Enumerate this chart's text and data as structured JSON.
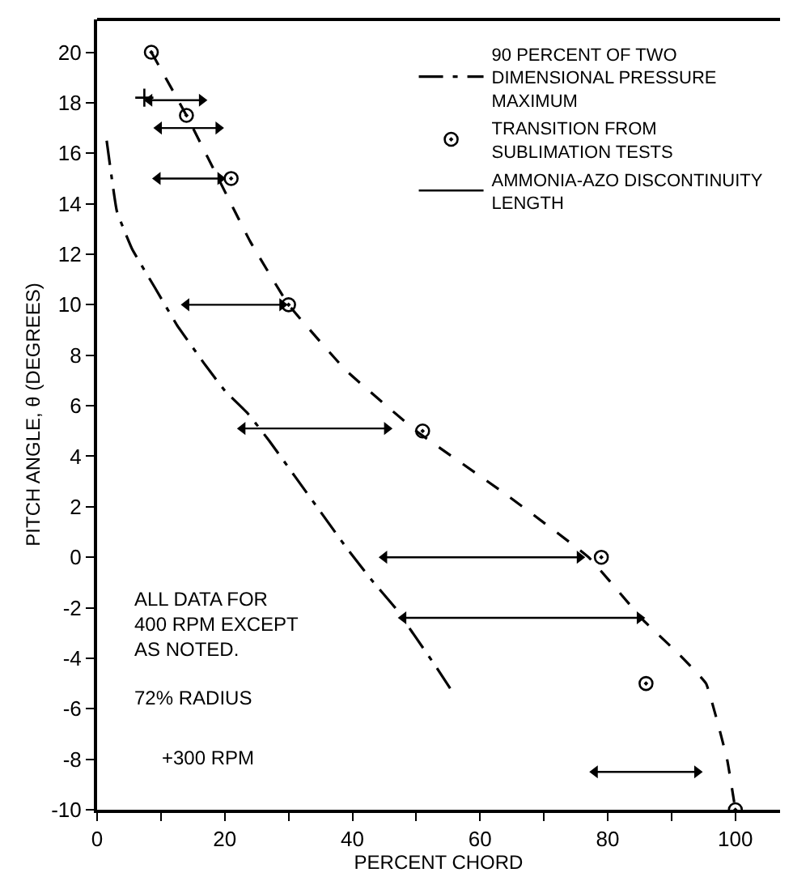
{
  "chart_data": {
    "type": "line",
    "xlabel": "PERCENT CHORD",
    "ylabel": "PITCH ANGLE, θ (DEGREES)",
    "xlim": [
      0,
      107
    ],
    "ylim": [
      -10,
      21.3
    ],
    "xticks": [
      0,
      {
        "value": 10,
        "label": null
      },
      20,
      {
        "value": 30,
        "label": null
      },
      40,
      {
        "value": 50,
        "label": null
      },
      60,
      {
        "value": 70,
        "label": null
      },
      80,
      {
        "value": 90,
        "label": null
      },
      100
    ],
    "yticks": [
      -10,
      -8,
      -6,
      -4,
      -2,
      0,
      2,
      4,
      6,
      8,
      10,
      12,
      14,
      16,
      18,
      20
    ],
    "legend": "top right",
    "series": [
      {
        "name": "90 PERCENT OF TWO\nDIMENSIONAL PRESSURE\nMAXIMUM",
        "line_style": "dashdot",
        "color": "#000000",
        "x": [
          1.5,
          3.1,
          5.5,
          9,
          12.5,
          16.7,
          20,
          23.6,
          27,
          31,
          35,
          39,
          43,
          46.7,
          50,
          53,
          55.6
        ],
        "values": [
          16.5,
          13.7,
          12.2,
          10.7,
          9.2,
          7.7,
          6.6,
          5.7,
          4.6,
          3.2,
          1.8,
          0.4,
          -0.9,
          -2,
          -3.2,
          -4.3,
          -5.3
        ]
      },
      {
        "name": "TRANSITION FROM\nSUBLIMATION TESTS",
        "type": "scatter",
        "marker": "circle",
        "color": "#000000",
        "x": [
          8.5,
          14,
          21,
          30,
          51,
          79,
          86,
          100
        ],
        "values": [
          20,
          17.5,
          15,
          10,
          5,
          0,
          -5,
          -10
        ]
      },
      {
        "type": "line",
        "line_style": "dashed",
        "color": "#000000",
        "x": [
          8.5,
          14,
          19,
          24,
          30,
          39,
          50,
          64,
          77,
          85.6,
          91,
          95.4,
          98.7,
          100
        ],
        "values": [
          20,
          17.5,
          15,
          12.5,
          10,
          7.4,
          5,
          2.5,
          0,
          -2.5,
          -3.8,
          -5,
          -8,
          -10
        ]
      },
      {
        "name": "AMMONIA-AZO DISCONTINUITY\nLENGTH",
        "type": "line",
        "line_style": "solid",
        "marker": "triangle",
        "color": "#000000",
        "x": [
          8.2,
          16.4,
          null,
          9.7,
          19,
          null,
          9.5,
          19.3,
          null,
          14,
          29,
          null,
          22.8,
          45.4,
          null,
          45,
          75.6,
          null,
          48,
          85,
          null,
          78,
          94
        ],
        "values": [
          18.1,
          18.1,
          null,
          17,
          17,
          null,
          15,
          15,
          null,
          10,
          10,
          null,
          5.1,
          5.1,
          null,
          0,
          0,
          null,
          -2.4,
          -2.4,
          null,
          -8.5,
          -8.5
        ]
      },
      {
        "type": "scatter",
        "marker": "cross",
        "color": "#000000",
        "x": [
          7.4
        ],
        "values": [
          18.2
        ]
      }
    ],
    "annotations": [
      "ALL DATA FOR\n400 RPM EXCEPT\nAS NOTED.",
      "72% RADIUS",
      "+300 RPM"
    ]
  }
}
